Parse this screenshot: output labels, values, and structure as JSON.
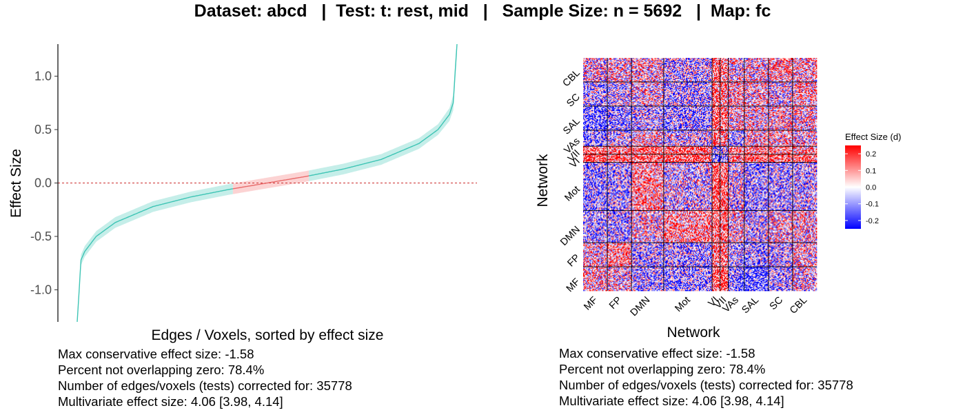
{
  "title": "Dataset: abcd   |  Test: t: rest, mid   |   Sample Size: n = 5692   |  Map: fc",
  "colors": {
    "curve": "#3dc4b4",
    "band_teal": "#c5eee9",
    "band_red": "#fcd3d3",
    "curve_red": "#e86a6a",
    "zero_line": "#cc2b2b",
    "heat_high": "#ff0000",
    "heat_mid": "#ffffff",
    "heat_low": "#0000ff",
    "axis": "#000000"
  },
  "chart_data": [
    {
      "type": "line",
      "xlabel": "Edges / Voxels, sorted by effect size",
      "ylabel": "Effect Size",
      "ylim": [
        -1.3,
        1.3
      ],
      "yticks": [
        1.0,
        0.5,
        0.0,
        -0.5,
        -1.0
      ],
      "ytick_labels": [
        "1.0",
        "0.5",
        "0.0",
        "-0.5",
        "-1.0"
      ],
      "reference_line": 0.0,
      "n_tests": 35778,
      "series": [
        {
          "x_fraction": [
            0.0,
            0.01,
            0.02,
            0.05,
            0.1,
            0.2,
            0.3,
            0.4,
            0.5,
            0.6,
            0.7,
            0.8,
            0.9,
            0.95,
            0.98,
            0.99,
            1.0
          ],
          "values": [
            -1.3,
            -0.72,
            -0.64,
            -0.5,
            -0.37,
            -0.22,
            -0.13,
            -0.06,
            0.0,
            0.06,
            0.13,
            0.22,
            0.37,
            0.5,
            0.64,
            0.75,
            1.3
          ],
          "ci_halfwidth": [
            0.0,
            0.05,
            0.05,
            0.05,
            0.05,
            0.05,
            0.05,
            0.05,
            0.05,
            0.05,
            0.05,
            0.05,
            0.05,
            0.05,
            0.06,
            0.07,
            0.08
          ],
          "overlap_zero_range": [
            0.41,
            0.61
          ]
        }
      ],
      "stats": [
        "Max conservative effect size: -1.58",
        "Percent not overlapping zero: 78.4%",
        "Number of edges/voxels (tests) corrected for: 35778",
        "Multivariate effect size: 4.06 [3.98, 4.14]"
      ]
    },
    {
      "type": "heatmap",
      "xlabel": "Network",
      "ylabel": "Network",
      "networks": [
        "MF",
        "FP",
        "DMN",
        "Mot",
        "VI",
        "VII",
        "VAs",
        "SAL",
        "SC",
        "CBL"
      ],
      "network_sizes": [
        3,
        3,
        4,
        6,
        1,
        1,
        2,
        3,
        3,
        3
      ],
      "scale": {
        "title": "Effect Size (d)",
        "ticks": [
          0.2,
          0.1,
          0.0,
          -0.1,
          -0.2
        ],
        "tick_labels": [
          "0.2",
          "0.1",
          "0.0",
          "-0.1",
          "-0.2"
        ],
        "limits": [
          -0.25,
          0.25
        ]
      },
      "block_means": [
        [
          0.05,
          0.02,
          -0.06,
          -0.08,
          0.16,
          0.16,
          -0.1,
          -0.14,
          -0.06,
          0.0
        ],
        [
          0.02,
          0.1,
          -0.06,
          -0.06,
          0.14,
          0.12,
          -0.04,
          -0.08,
          -0.04,
          0.03
        ],
        [
          -0.06,
          -0.06,
          0.02,
          0.09,
          0.16,
          0.14,
          0.03,
          -0.04,
          0.02,
          0.03
        ],
        [
          -0.08,
          -0.06,
          0.09,
          -0.02,
          0.17,
          0.15,
          -0.02,
          -0.08,
          -0.06,
          -0.04
        ],
        [
          0.16,
          0.14,
          0.16,
          0.17,
          -0.14,
          -0.1,
          0.12,
          0.15,
          0.14,
          0.14
        ],
        [
          0.16,
          0.12,
          0.14,
          0.15,
          -0.1,
          -0.05,
          0.1,
          0.12,
          0.1,
          0.1
        ],
        [
          -0.1,
          -0.04,
          0.03,
          -0.02,
          0.12,
          0.1,
          -0.08,
          0.04,
          0.06,
          0.02
        ],
        [
          -0.14,
          -0.08,
          -0.04,
          -0.08,
          0.15,
          0.12,
          0.04,
          0.02,
          0.04,
          0.03
        ],
        [
          -0.06,
          -0.04,
          0.02,
          -0.06,
          0.14,
          0.1,
          0.06,
          0.04,
          0.0,
          0.06
        ],
        [
          0.0,
          0.03,
          0.03,
          -0.04,
          0.14,
          0.1,
          0.02,
          0.03,
          0.06,
          0.04
        ]
      ],
      "stats": [
        "Max conservative effect size: -1.58",
        "Percent not overlapping zero: 78.4%",
        "Number of edges/voxels (tests) corrected for: 35778",
        "Multivariate effect size: 4.06 [3.98, 4.14]"
      ]
    }
  ]
}
